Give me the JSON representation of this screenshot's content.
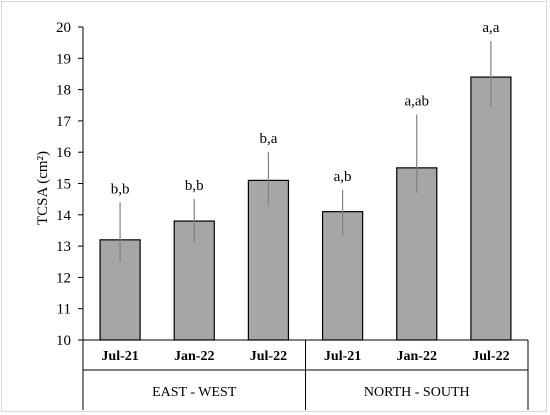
{
  "chart_data": {
    "type": "bar",
    "ylabel": "TCSA (cm²)",
    "ylim": [
      10,
      20
    ],
    "ytick_step": 1,
    "grid": false,
    "legend": "none",
    "groups": [
      {
        "label": "EAST - WEST",
        "categories": [
          "Jul-21",
          "Jan-22",
          "Jul-22"
        ]
      },
      {
        "label": "NORTH - SOUTH",
        "categories": [
          "Jul-21",
          "Jan-22",
          "Jul-22"
        ]
      }
    ],
    "categories": [
      "Jul-21",
      "Jan-22",
      "Jul-22",
      "Jul-21",
      "Jan-22",
      "Jul-22"
    ],
    "values": [
      13.2,
      13.8,
      15.1,
      14.1,
      15.5,
      18.4
    ],
    "error_low": [
      12.5,
      13.1,
      14.3,
      13.35,
      14.7,
      17.45
    ],
    "error_high": [
      14.4,
      14.5,
      16.0,
      14.8,
      17.2,
      19.55
    ],
    "significance_labels": [
      "b,b",
      "b,b",
      "b,a",
      "a,b",
      "a,ab",
      "a,a"
    ],
    "colors": {
      "bar_fill": "#a6a6a6",
      "bar_stroke": "#000000",
      "error_bar": "#808080"
    }
  }
}
